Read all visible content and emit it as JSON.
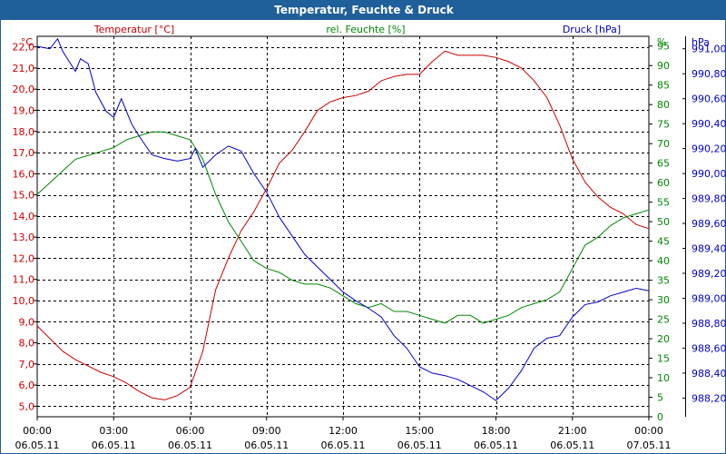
{
  "chart_data": {
    "type": "line",
    "title": "Temperatur, Feuchte & Druck",
    "x": [
      "00:00",
      "03:00",
      "06:00",
      "09:00",
      "12:00",
      "15:00",
      "18:00",
      "21:00",
      "00:00"
    ],
    "x_dates": [
      "06.05.11",
      "06.05.11",
      "06.05.11",
      "06.05.11",
      "06.05.11",
      "06.05.11",
      "06.05.11",
      "06.05.11",
      "07.05.11"
    ],
    "x_range_hours": [
      0,
      24
    ],
    "legend": [
      "Temperatur [°C]",
      "rel. Feuchte [%]",
      "Druck [hPa]"
    ],
    "axes": {
      "temperature": {
        "unit": "°C",
        "ylim": [
          4.5,
          22.5
        ],
        "ticks": [
          "5,0",
          "6,0",
          "7,0",
          "8,0",
          "9,0",
          "10,0",
          "11,0",
          "12,0",
          "13,0",
          "14,0",
          "15,0",
          "16,0",
          "17,0",
          "18,0",
          "19,0",
          "20,0",
          "21,0",
          "22,0"
        ]
      },
      "humidity": {
        "unit": "%",
        "ylim": [
          0,
          97.5
        ],
        "ticks": [
          "0",
          "5",
          "10",
          "15",
          "20",
          "25",
          "30",
          "35",
          "40",
          "45",
          "50",
          "55",
          "60",
          "65",
          "70",
          "75",
          "80",
          "85",
          "90",
          "95"
        ]
      },
      "pressure": {
        "unit": "hPa",
        "ylim": [
          988.05,
          991.1
        ],
        "ticks": [
          "988,20",
          "988,40",
          "988,60",
          "988,80",
          "989,00",
          "989,20",
          "989,40",
          "989,60",
          "989,80",
          "990,00",
          "990,20",
          "990,40",
          "990,60",
          "990,80",
          "991,00"
        ]
      }
    },
    "grid": true,
    "series": [
      {
        "name": "Temperatur [°C]",
        "axis": "temperature",
        "color": "#cc0000",
        "points": [
          [
            0,
            8.8
          ],
          [
            0.5,
            8.2
          ],
          [
            1,
            7.6
          ],
          [
            1.5,
            7.2
          ],
          [
            2,
            6.9
          ],
          [
            2.5,
            6.6
          ],
          [
            3,
            6.4
          ],
          [
            3.5,
            6.1
          ],
          [
            4,
            5.7
          ],
          [
            4.5,
            5.4
          ],
          [
            5,
            5.3
          ],
          [
            5.5,
            5.5
          ],
          [
            6,
            5.9
          ],
          [
            6.5,
            7.6
          ],
          [
            7,
            10.5
          ],
          [
            7.5,
            12.0
          ],
          [
            8,
            13.3
          ],
          [
            8.5,
            14.2
          ],
          [
            9,
            15.3
          ],
          [
            9.5,
            16.5
          ],
          [
            10,
            17.1
          ],
          [
            10.5,
            18.0
          ],
          [
            11,
            19.0
          ],
          [
            11.5,
            19.4
          ],
          [
            12,
            19.6
          ],
          [
            12.5,
            19.7
          ],
          [
            13,
            19.9
          ],
          [
            13.5,
            20.4
          ],
          [
            14,
            20.6
          ],
          [
            14.5,
            20.7
          ],
          [
            15,
            20.7
          ],
          [
            15.5,
            21.3
          ],
          [
            16,
            21.8
          ],
          [
            16.5,
            21.6
          ],
          [
            17,
            21.6
          ],
          [
            17.5,
            21.6
          ],
          [
            18,
            21.5
          ],
          [
            18.5,
            21.3
          ],
          [
            19,
            21.0
          ],
          [
            19.5,
            20.4
          ],
          [
            20,
            19.6
          ],
          [
            20.5,
            18.3
          ],
          [
            21,
            16.7
          ],
          [
            21.5,
            15.6
          ],
          [
            22,
            14.9
          ],
          [
            22.5,
            14.4
          ],
          [
            23,
            14.1
          ],
          [
            23.5,
            13.6
          ],
          [
            24,
            13.4
          ]
        ]
      },
      {
        "name": "rel. Feuchte [%]",
        "axis": "humidity",
        "color": "#008800",
        "points": [
          [
            0,
            57
          ],
          [
            0.5,
            60
          ],
          [
            1,
            63
          ],
          [
            1.5,
            66
          ],
          [
            2,
            67
          ],
          [
            2.5,
            68
          ],
          [
            3,
            69
          ],
          [
            3.5,
            71
          ],
          [
            4,
            72
          ],
          [
            4.5,
            73
          ],
          [
            5,
            73
          ],
          [
            5.5,
            72
          ],
          [
            6,
            71
          ],
          [
            6.5,
            66
          ],
          [
            7,
            57
          ],
          [
            7.5,
            50
          ],
          [
            8,
            45
          ],
          [
            8.5,
            40
          ],
          [
            9,
            38
          ],
          [
            9.5,
            37
          ],
          [
            10,
            35
          ],
          [
            10.5,
            34
          ],
          [
            11,
            34
          ],
          [
            11.5,
            33
          ],
          [
            12,
            31
          ],
          [
            12.5,
            29
          ],
          [
            13,
            28
          ],
          [
            13.5,
            29
          ],
          [
            14,
            27
          ],
          [
            14.5,
            27
          ],
          [
            15,
            26
          ],
          [
            15.5,
            25
          ],
          [
            16,
            24
          ],
          [
            16.5,
            26
          ],
          [
            17,
            26
          ],
          [
            17.5,
            24
          ],
          [
            18,
            25
          ],
          [
            18.5,
            26
          ],
          [
            19,
            28
          ],
          [
            19.5,
            29
          ],
          [
            20,
            30
          ],
          [
            20.5,
            32
          ],
          [
            21,
            38
          ],
          [
            21.5,
            44
          ],
          [
            22,
            46
          ],
          [
            22.5,
            49
          ],
          [
            23,
            51
          ],
          [
            23.5,
            52
          ],
          [
            24,
            53
          ]
        ]
      },
      {
        "name": "Druck [hPa]",
        "axis": "pressure",
        "color": "#0000cc",
        "points": [
          [
            0,
            991.02
          ],
          [
            0.5,
            991.0
          ],
          [
            0.8,
            991.08
          ],
          [
            1,
            990.98
          ],
          [
            1.5,
            990.82
          ],
          [
            1.7,
            990.92
          ],
          [
            2,
            990.88
          ],
          [
            2.3,
            990.65
          ],
          [
            2.7,
            990.5
          ],
          [
            3,
            990.45
          ],
          [
            3.3,
            990.6
          ],
          [
            3.7,
            990.4
          ],
          [
            4,
            990.3
          ],
          [
            4.5,
            990.15
          ],
          [
            5,
            990.12
          ],
          [
            5.5,
            990.1
          ],
          [
            6,
            990.12
          ],
          [
            6.2,
            990.2
          ],
          [
            6.5,
            990.05
          ],
          [
            7,
            990.15
          ],
          [
            7.5,
            990.22
          ],
          [
            8,
            990.18
          ],
          [
            8.5,
            990.0
          ],
          [
            9,
            989.85
          ],
          [
            9.5,
            989.65
          ],
          [
            10,
            989.5
          ],
          [
            10.5,
            989.35
          ],
          [
            11,
            989.25
          ],
          [
            11.5,
            989.15
          ],
          [
            12,
            989.05
          ],
          [
            12.5,
            988.98
          ],
          [
            13,
            988.92
          ],
          [
            13.5,
            988.85
          ],
          [
            14,
            988.7
          ],
          [
            14.5,
            988.6
          ],
          [
            15,
            988.45
          ],
          [
            15.5,
            988.4
          ],
          [
            16,
            988.38
          ],
          [
            16.5,
            988.35
          ],
          [
            17,
            988.3
          ],
          [
            17.5,
            988.25
          ],
          [
            18,
            988.18
          ],
          [
            18.5,
            988.28
          ],
          [
            19,
            988.42
          ],
          [
            19.5,
            988.6
          ],
          [
            20,
            988.68
          ],
          [
            20.5,
            988.7
          ],
          [
            21,
            988.85
          ],
          [
            21.5,
            988.95
          ],
          [
            22,
            988.97
          ],
          [
            22.5,
            989.02
          ],
          [
            23,
            989.05
          ],
          [
            23.5,
            989.08
          ],
          [
            24,
            989.06
          ]
        ]
      }
    ]
  }
}
